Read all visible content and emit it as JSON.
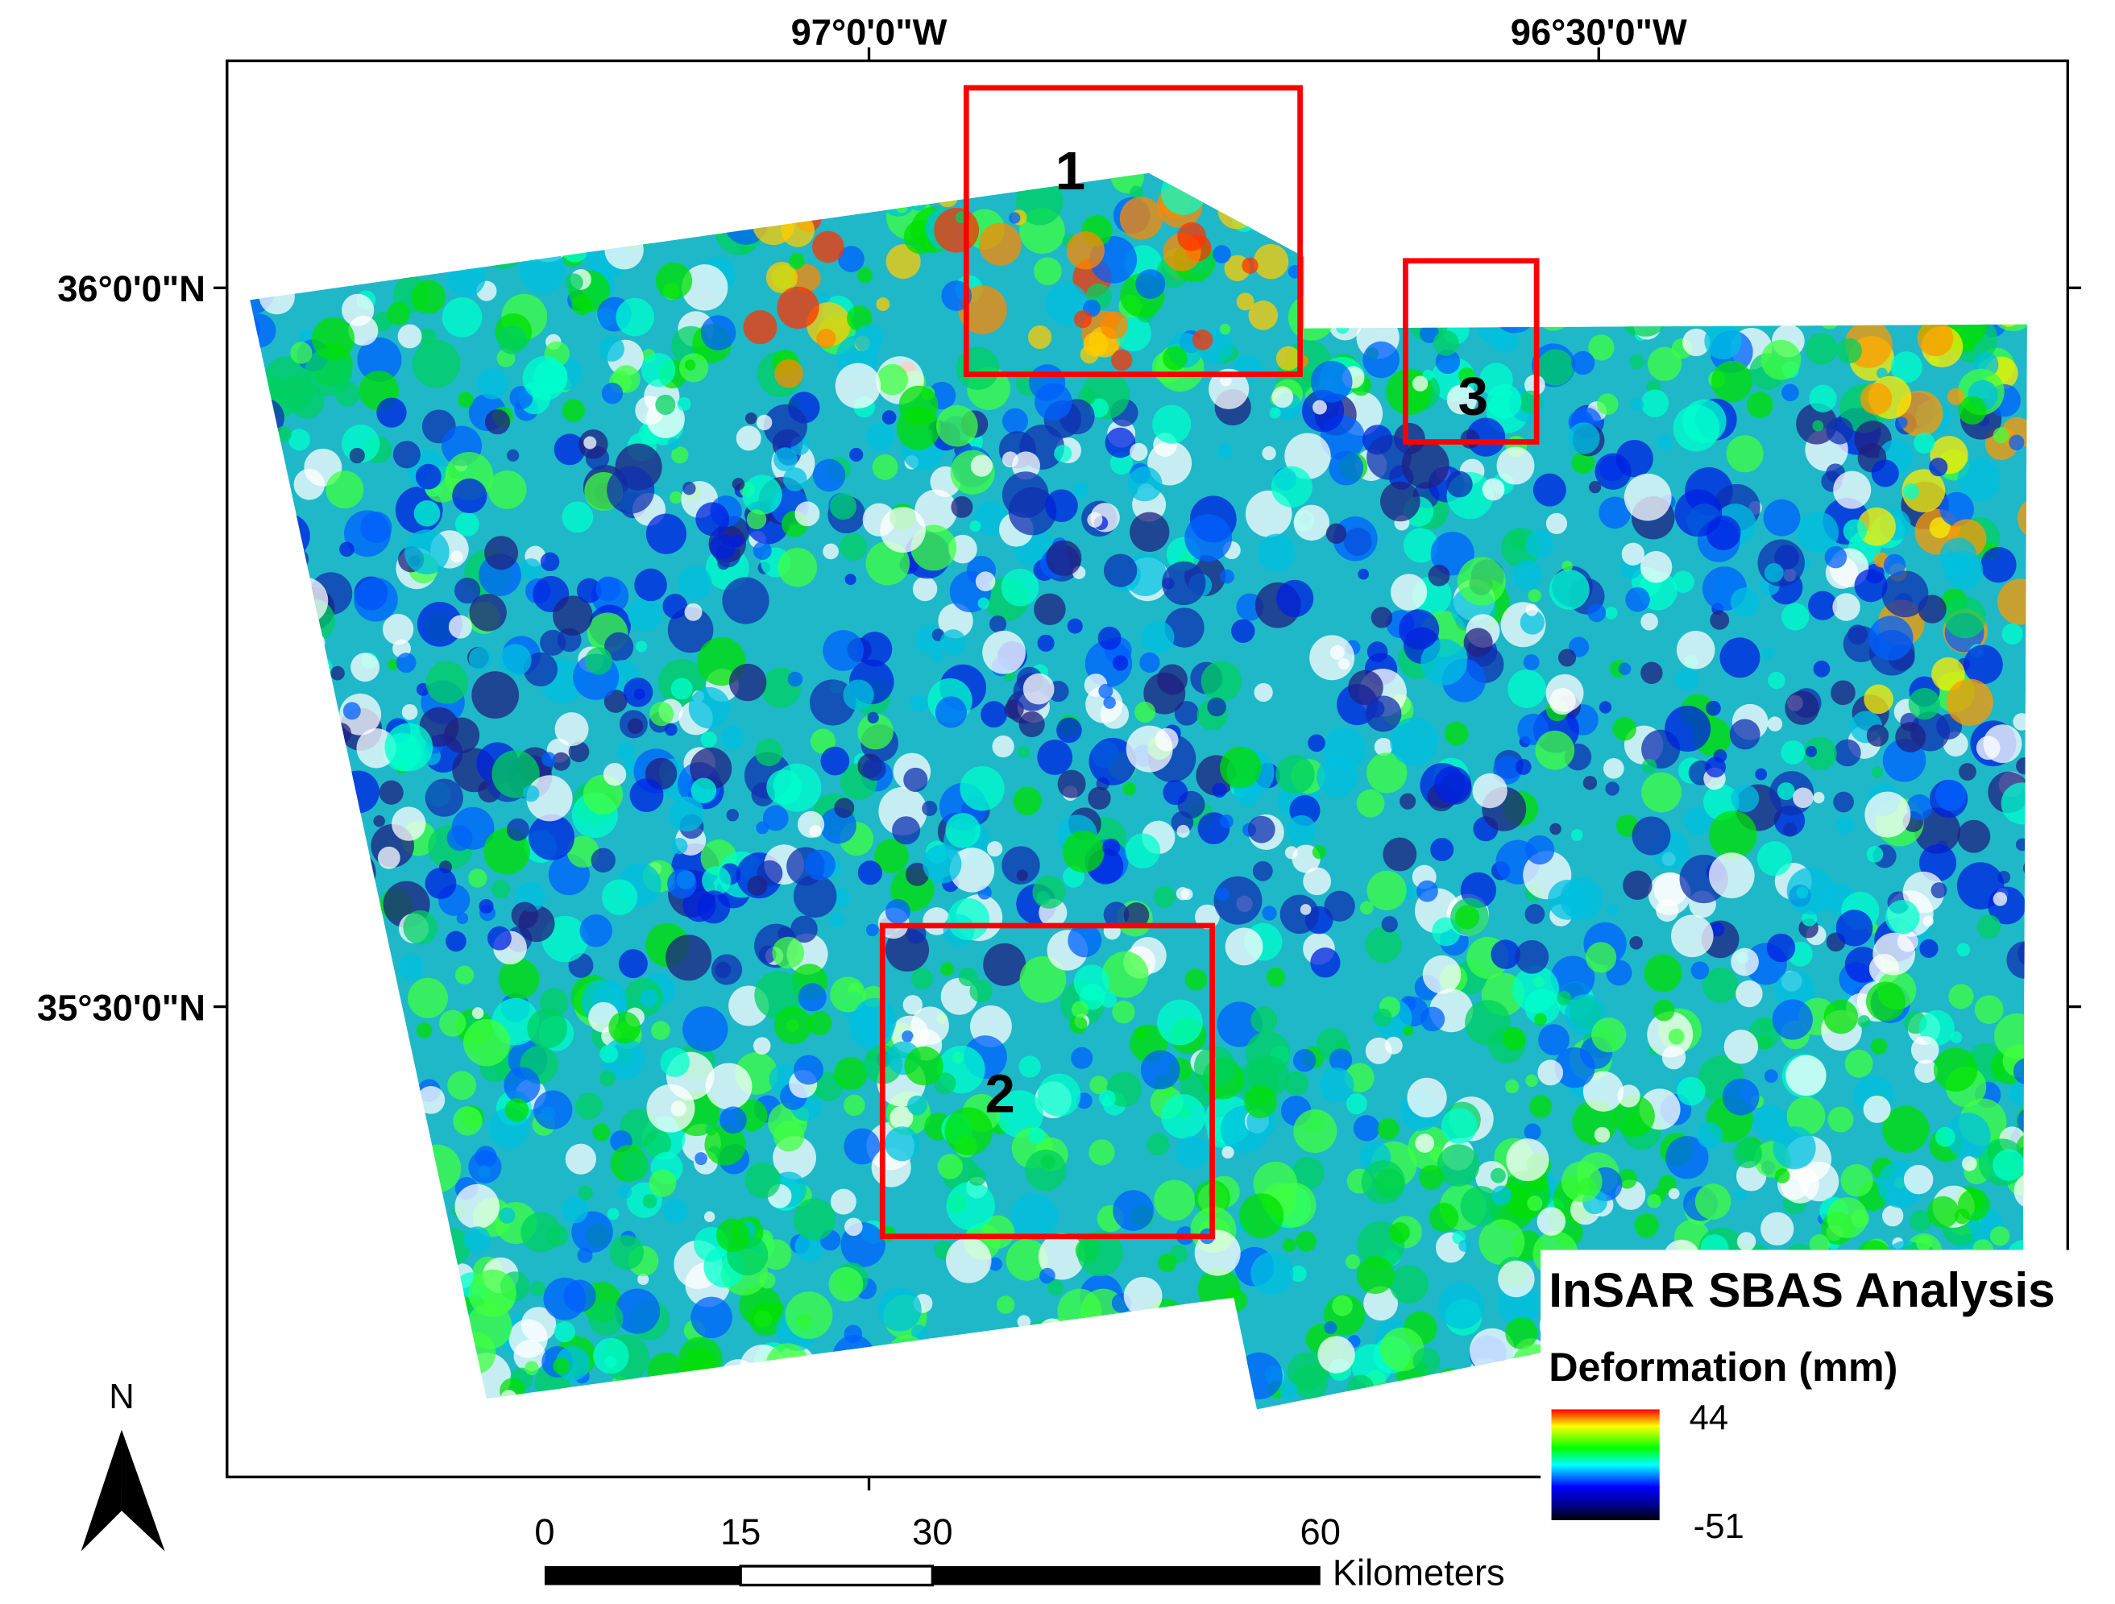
{
  "map": {
    "longitude_labels": [
      "97°0'0\"W",
      "96°30'0\"W"
    ],
    "latitude_labels": [
      "36°0'0\"N",
      "35°30'0\"N"
    ],
    "areas": [
      {
        "label": "1"
      },
      {
        "label": "2"
      },
      {
        "label": "3"
      }
    ],
    "legend": {
      "title": "InSAR SBAS Analysis",
      "subtitle": "Deformation (mm)",
      "max": 44,
      "min": -51
    },
    "scale_bar": {
      "labels": [
        "0",
        "15",
        "30",
        "60"
      ],
      "unit": "Kilometers"
    },
    "north_arrow": "N"
  }
}
